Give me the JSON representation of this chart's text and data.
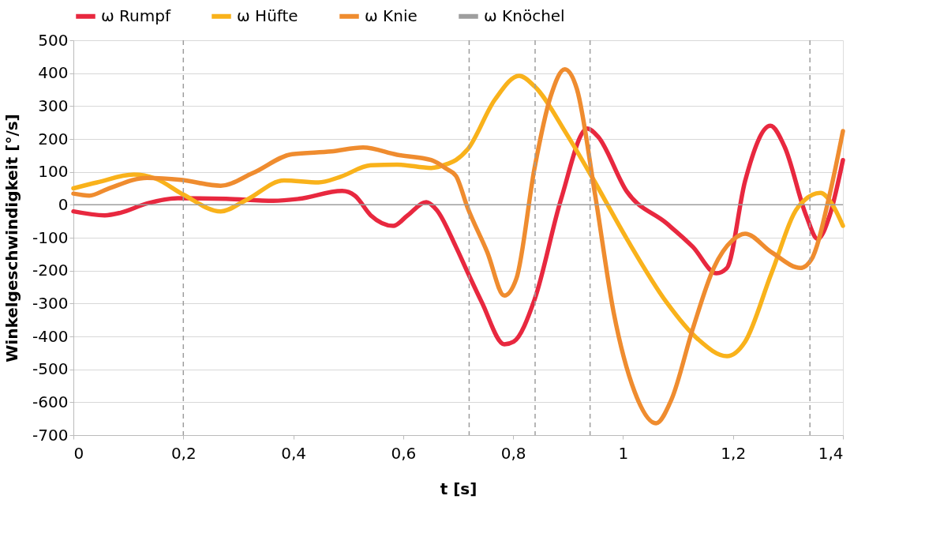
{
  "chart_data": {
    "type": "line",
    "xlabel": "t [s]",
    "ylabel": "Winkelgeschwindigkeit [°/s]",
    "xlim": [
      0,
      1.4
    ],
    "ylim": [
      -700,
      500
    ],
    "xticks": [
      0,
      {
        "value": 0.2,
        "label": "0,2"
      },
      {
        "value": 0.4,
        "label": "0,4"
      },
      {
        "value": 0.6,
        "label": "0,6"
      },
      {
        "value": 0.8,
        "label": "0,8"
      },
      1,
      {
        "value": 1.2,
        "label": "1,2"
      },
      {
        "value": 1.4,
        "label": "1,4"
      }
    ],
    "yticks": [
      -700,
      -600,
      -500,
      -400,
      -300,
      -200,
      -100,
      0,
      100,
      200,
      300,
      400,
      500
    ],
    "grid": "y",
    "legend": "top",
    "line_style": "solid",
    "marker": "none",
    "series": [
      {
        "name": "ω Rumpf",
        "color": "#e8283f",
        "x": [
          0,
          0.057,
          0.086,
          0.134,
          0.19,
          0.278,
          0.364,
          0.41,
          0.489,
          0.512,
          0.541,
          0.582,
          0.608,
          0.642,
          0.661,
          0.696,
          0.718,
          0.743,
          0.784,
          0.801,
          0.839,
          0.887,
          0.935,
          0.954,
          1.007,
          1.079,
          1.127,
          1.17,
          1.189,
          1.222,
          1.268,
          1.294,
          1.333,
          1.354,
          1.376,
          1.4
        ],
        "values": [
          -20,
          -32,
          -24,
          4,
          20,
          18,
          12,
          18,
          42,
          28,
          -32,
          -64,
          -32,
          8,
          -16,
          -128,
          -208,
          -296,
          -424,
          -416,
          -288,
          16,
          232,
          208,
          40,
          -56,
          -128,
          -208,
          -192,
          72,
          240,
          176,
          -32,
          -104,
          -32,
          136
        ]
      },
      {
        "name": "ω Hüfte",
        "color": "#f9b21b",
        "x": [
          0,
          0.043,
          0.11,
          0.149,
          0.199,
          0.268,
          0.316,
          0.383,
          0.446,
          0.484,
          0.541,
          0.589,
          0.651,
          0.68,
          0.696,
          0.717,
          0.767,
          0.811,
          0.839,
          0.897,
          0.945,
          1.007,
          1.079,
          1.136,
          1.189,
          1.222,
          1.27,
          1.318,
          1.359,
          1.381,
          1.4
        ],
        "values": [
          50,
          68,
          92,
          80,
          32,
          -20,
          16,
          74,
          68,
          84,
          120,
          122,
          112,
          124,
          136,
          168,
          320,
          392,
          360,
          216,
          80,
          -104,
          -296,
          -408,
          -460,
          -416,
          -208,
          -8,
          36,
          0,
          -64
        ]
      },
      {
        "name": "ω Knie",
        "color": "#ef8c2f",
        "x": [
          0,
          0.029,
          0.062,
          0.134,
          0.196,
          0.268,
          0.326,
          0.398,
          0.469,
          0.527,
          0.589,
          0.651,
          0.68,
          0.696,
          0.717,
          0.753,
          0.784,
          0.806,
          0.839,
          0.868,
          0.894,
          0.916,
          0.949,
          0.983,
          1.021,
          1.06,
          1.088,
          1.127,
          1.165,
          1.199,
          1.222,
          1.27,
          1.323,
          1.342,
          1.376,
          1.4
        ],
        "values": [
          34,
          28,
          48,
          82,
          76,
          58,
          96,
          154,
          162,
          174,
          152,
          136,
          108,
          88,
          -8,
          -144,
          -276,
          -224,
          112,
          328,
          412,
          352,
          32,
          -328,
          -568,
          -664,
          -592,
          -376,
          -192,
          -108,
          -88,
          -144,
          -192,
          -168,
          32,
          224
        ]
      },
      {
        "name": "ω Knöchel",
        "color": "#9e9e9e",
        "values": [
          null
        ]
      }
    ],
    "ref_lines": [
      {
        "axis": "y",
        "value": 0,
        "color": "#9e9e9e",
        "line_style": "solid"
      },
      {
        "axis": "x",
        "value": 0.2,
        "color": "#9e9e9e",
        "line_style": "dashed"
      },
      {
        "axis": "x",
        "value": 0.72,
        "color": "#9e9e9e",
        "line_style": "dashed"
      },
      {
        "axis": "x",
        "value": 0.84,
        "color": "#9e9e9e",
        "line_style": "dashed"
      },
      {
        "axis": "x",
        "value": 0.94,
        "color": "#9e9e9e",
        "line_style": "dashed"
      },
      {
        "axis": "x",
        "value": 1.34,
        "color": "#9e9e9e",
        "line_style": "dashed"
      }
    ]
  }
}
